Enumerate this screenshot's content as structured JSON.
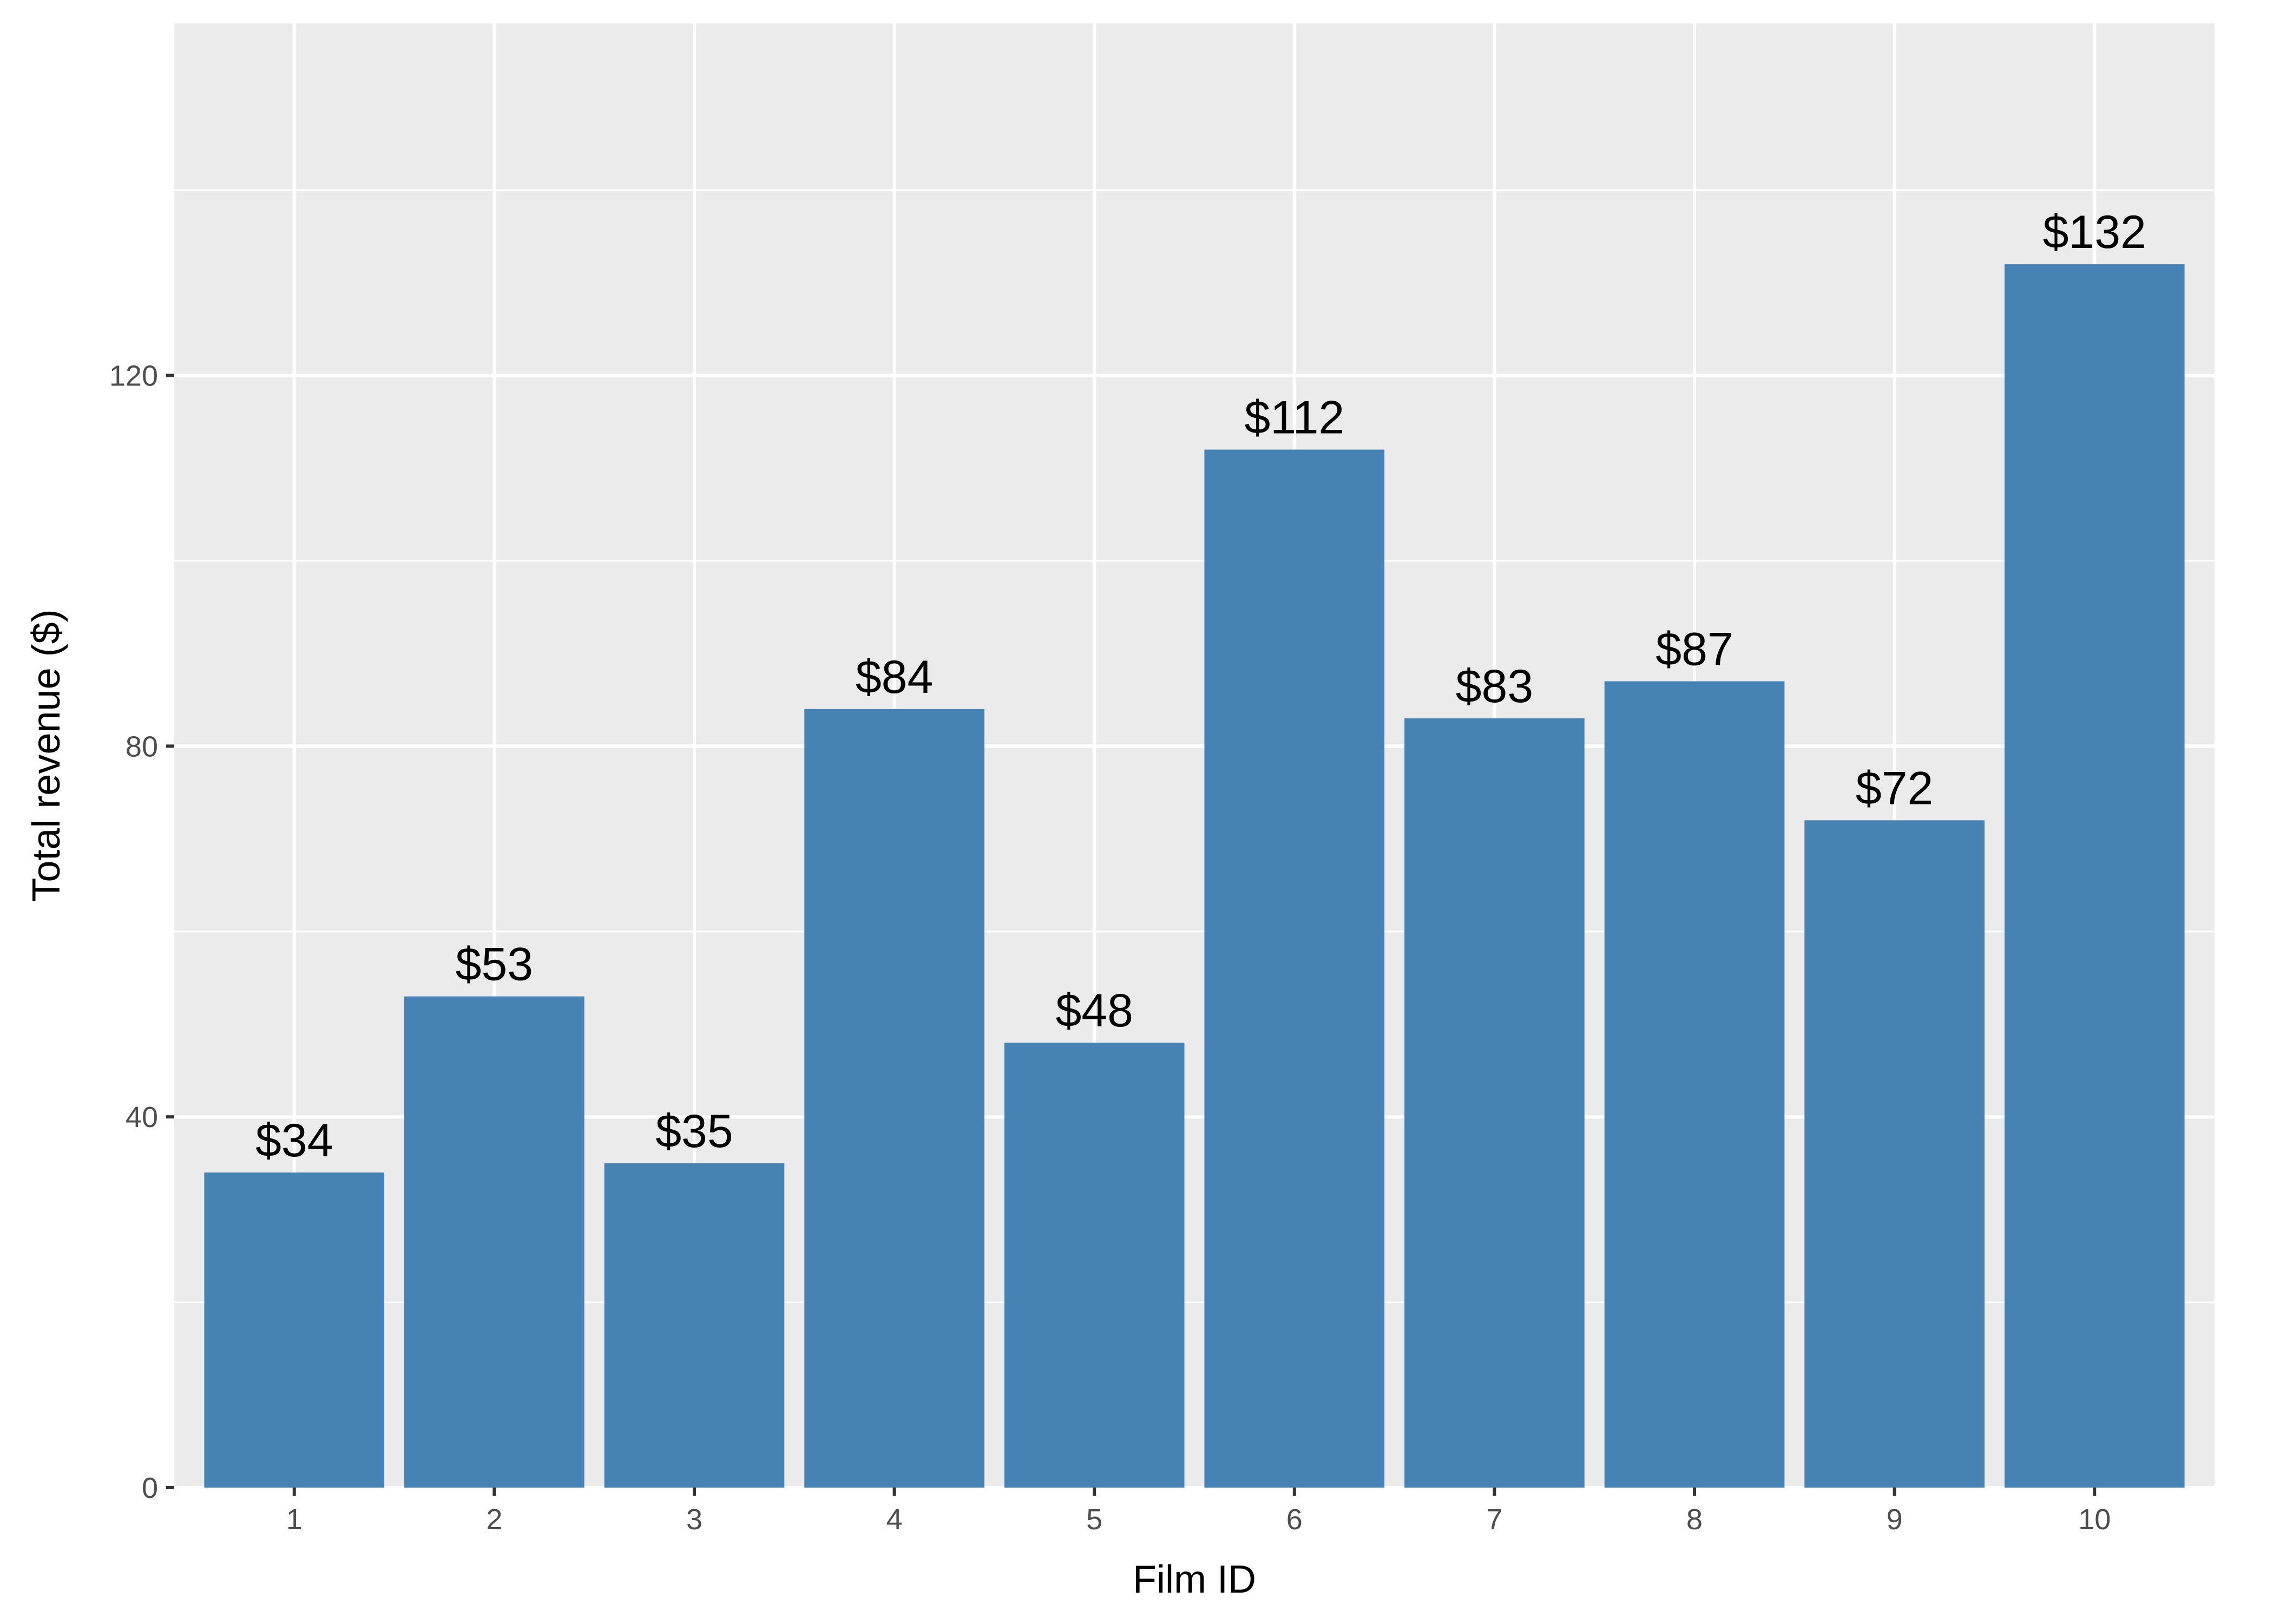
{
  "chart_data": {
    "type": "bar",
    "categories": [
      "1",
      "2",
      "3",
      "4",
      "5",
      "6",
      "7",
      "8",
      "9",
      "10"
    ],
    "values": [
      34,
      53,
      35,
      84,
      48,
      112,
      83,
      87,
      72,
      132
    ],
    "data_labels": [
      "$34",
      "$53",
      "$35",
      "$84",
      "$48",
      "$112",
      "$83",
      "$87",
      "$72",
      "$132"
    ],
    "xlabel": "Film ID",
    "ylabel": "Total revenue ($)",
    "ylim": [
      0,
      158
    ],
    "yticks": [
      0,
      40,
      80,
      120
    ],
    "ytick_labels": [
      "0",
      "40",
      "80",
      "120"
    ],
    "grid": true,
    "legend": "none",
    "colors": {
      "bar": "#4682b4",
      "panel_background": "#ebebeb",
      "grid": "#ffffff",
      "tick": "#333333"
    }
  }
}
